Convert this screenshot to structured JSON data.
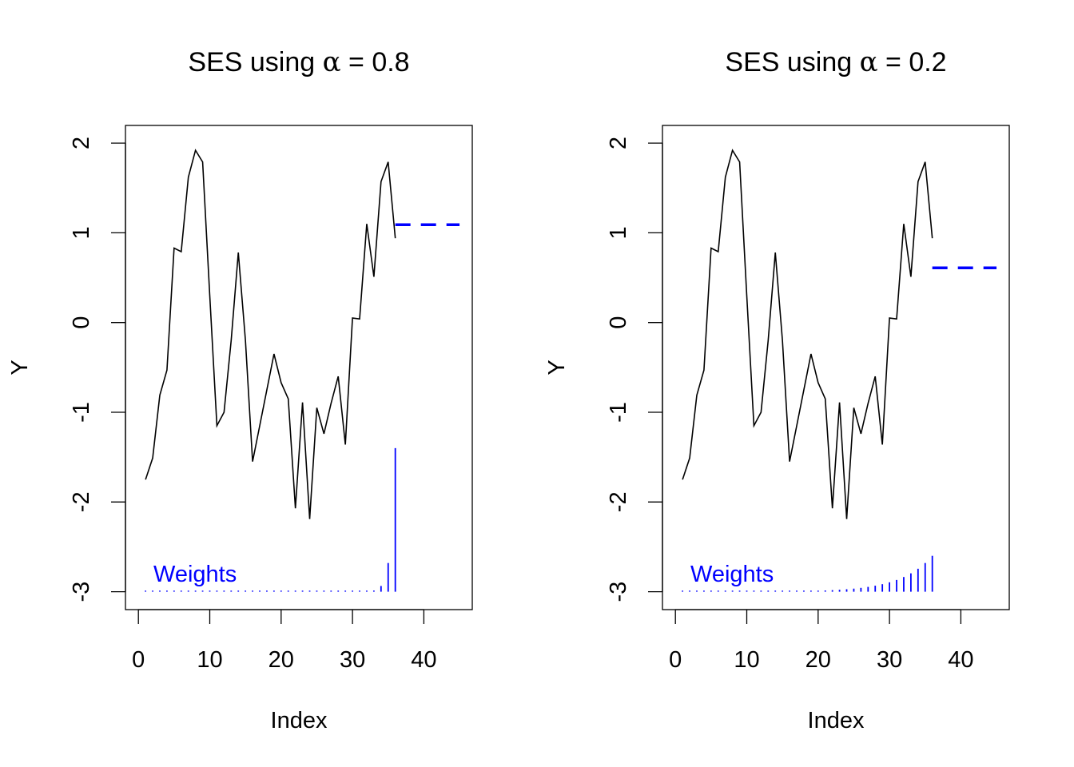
{
  "chart_data": [
    {
      "type": "line",
      "title": "SES using α = 0.8",
      "title_prefix": "SES using ",
      "title_symbol": "α",
      "title_suffix": " = 0.8",
      "alpha": 0.8,
      "xlabel": "Index",
      "ylabel": "Y",
      "xlim": [
        -1.9,
        46.8
      ],
      "ylim": [
        -3.2,
        2.2
      ],
      "xticks": [
        0,
        10,
        20,
        30,
        40
      ],
      "yticks": [
        -3,
        -2,
        -1,
        0,
        1,
        2
      ],
      "series": [
        {
          "name": "Y",
          "color": "#000000",
          "x": [
            1,
            2,
            3,
            4,
            5,
            6,
            7,
            8,
            9,
            10,
            11,
            12,
            13,
            14,
            15,
            16,
            17,
            18,
            19,
            20,
            21,
            22,
            23,
            24,
            25,
            26,
            27,
            28,
            29,
            30,
            31,
            32,
            33,
            34,
            35,
            36
          ],
          "values": [
            -1.75,
            -1.51,
            -0.81,
            -0.53,
            0.83,
            0.79,
            1.62,
            1.92,
            1.79,
            0.3,
            -1.15,
            -1.0,
            -0.2,
            0.78,
            -0.2,
            -1.55,
            -1.15,
            -0.75,
            -0.35,
            -0.67,
            -0.85,
            -2.07,
            -0.89,
            -2.19,
            -0.95,
            -1.24,
            -0.9,
            -0.6,
            -1.36,
            0.05,
            0.04,
            1.1,
            0.51,
            1.57,
            1.79,
            0.94
          ]
        },
        {
          "name": "forecast",
          "color": "#0000FF",
          "x": [
            36,
            45
          ],
          "values": [
            1.09,
            1.09
          ]
        }
      ],
      "weights_label": "Weights",
      "weights_color": "#0000FF"
    },
    {
      "type": "line",
      "title": "SES using α = 0.2",
      "title_prefix": "SES using ",
      "title_symbol": "α",
      "title_suffix": " = 0.2",
      "alpha": 0.2,
      "xlabel": "Index",
      "ylabel": "Y",
      "xlim": [
        -1.9,
        46.8
      ],
      "ylim": [
        -3.2,
        2.2
      ],
      "xticks": [
        0,
        10,
        20,
        30,
        40
      ],
      "yticks": [
        -3,
        -2,
        -1,
        0,
        1,
        2
      ],
      "series": [
        {
          "name": "Y",
          "color": "#000000",
          "x": [
            1,
            2,
            3,
            4,
            5,
            6,
            7,
            8,
            9,
            10,
            11,
            12,
            13,
            14,
            15,
            16,
            17,
            18,
            19,
            20,
            21,
            22,
            23,
            24,
            25,
            26,
            27,
            28,
            29,
            30,
            31,
            32,
            33,
            34,
            35,
            36
          ],
          "values": [
            -1.75,
            -1.51,
            -0.81,
            -0.53,
            0.83,
            0.79,
            1.62,
            1.92,
            1.79,
            0.3,
            -1.15,
            -1.0,
            -0.2,
            0.78,
            -0.2,
            -1.55,
            -1.15,
            -0.75,
            -0.35,
            -0.67,
            -0.85,
            -2.07,
            -0.89,
            -2.19,
            -0.95,
            -1.24,
            -0.9,
            -0.6,
            -1.36,
            0.05,
            0.04,
            1.1,
            0.51,
            1.57,
            1.79,
            0.94
          ]
        },
        {
          "name": "forecast",
          "color": "#0000FF",
          "x": [
            36,
            45
          ],
          "values": [
            0.61,
            0.61
          ]
        }
      ],
      "weights_label": "Weights",
      "weights_color": "#0000FF"
    }
  ]
}
